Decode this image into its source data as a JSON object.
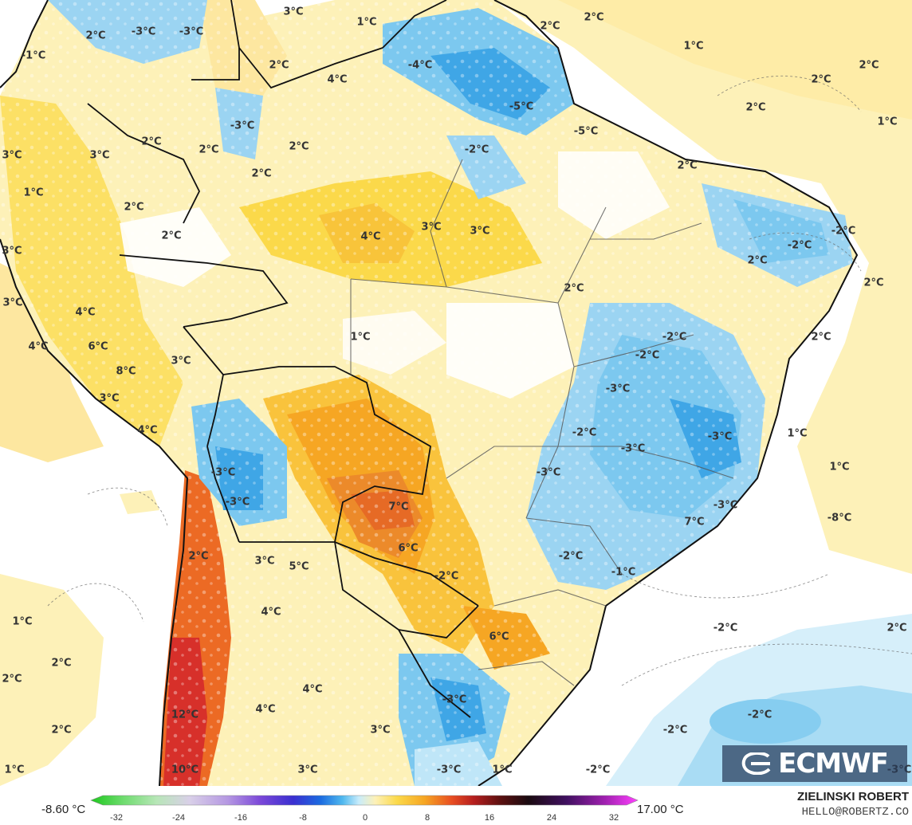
{
  "colors": {
    "ocean": "#ffffff",
    "warm_light": "#fdf1b8",
    "warm_mid": "#fbd94a",
    "warm_strong": "#f6a623",
    "hot": "#ec6a24",
    "very_hot": "#d7302a",
    "cool_light": "#bfe6f8",
    "cool_mid": "#7cc8ef",
    "cool_strong": "#3fa6e6",
    "border": "#111111"
  },
  "labels": [
    "3°C",
    "-3°C",
    "-3°C",
    "1°C",
    "-1°C",
    "2°C",
    "2°C",
    "2°C",
    "1°C",
    "4°C",
    "-4°C",
    "2°C",
    "2°C",
    "-5°C",
    "-5°C",
    "-3°C",
    "2°C",
    "3°C",
    "2°C",
    "2°C",
    "2°C",
    "-2°C",
    "2°C",
    "1°C",
    "3°C",
    "1°C",
    "2°C",
    "4°C",
    "3°C",
    "3°C",
    "2°C",
    "2°C",
    "2°C",
    "-2°C",
    "-2°C",
    "3°C",
    "2°C",
    "2°C",
    "3°C",
    "4°C",
    "1°C",
    "-2°C",
    "2°C",
    "6°C",
    "-2°C",
    "4°C",
    "3°C",
    "8°C",
    "3°C",
    "-3°C",
    "2°C",
    "-2°C",
    "-3°C",
    "-3°C",
    "4°C",
    "1°C",
    "-3°C",
    "1°C",
    "-3°C",
    "-3°C",
    "7°C",
    "2°C",
    "-8°C",
    "-3°C",
    "7°C",
    "6°C",
    "-2°C",
    "3°C",
    "5°C",
    "-2°C",
    "-1°C",
    "1°C",
    "4°C",
    "6°C",
    "-2°C",
    "2°C",
    "2°C",
    "2°C",
    "4°C",
    "4°C",
    "-3°C",
    "2°C",
    "12°C",
    "3°C",
    "-2°C",
    "-2°C",
    "1°C",
    "10°C",
    "3°C",
    "-3°C",
    "1°C",
    "-2°C",
    "-3°C"
  ],
  "legend": {
    "min_label": "-8.60 °C",
    "max_label": "17.00 °C",
    "ticks": [
      "-32",
      "-24",
      "-16",
      "-8",
      "0",
      "8",
      "16",
      "24",
      "32"
    ],
    "stops": [
      -32,
      32
    ]
  },
  "branding": {
    "logo_text": "ECMWF",
    "author": "ZIELINSKI ROBERT",
    "email": "HELLO@ROBERTZ.CO"
  }
}
